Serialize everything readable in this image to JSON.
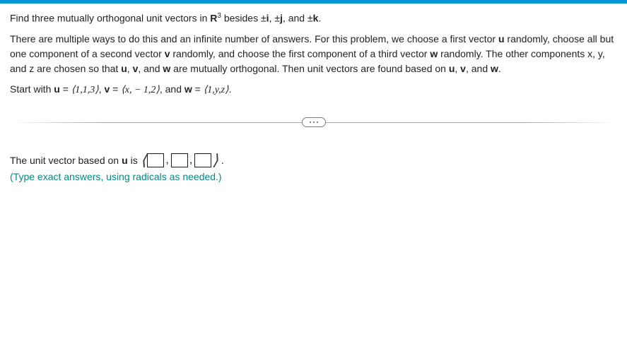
{
  "problem": {
    "line1_a": "Find three mutually orthogonal unit vectors in ",
    "line1_space": "R",
    "line1_exp": "3",
    "line1_b": " besides  ±",
    "line1_i": "i",
    "line1_c": ",  ±",
    "line1_j": "j",
    "line1_d": ", and  ±",
    "line1_k": "k",
    "line1_e": ".",
    "para2": "There are multiple ways to do this and an infinite number of answers.  For this problem, we choose a first vector ",
    "u1": "u",
    "para2b": " randomly, choose all but one component of a second vector ",
    "v1": "v",
    "para2c": " randomly, and choose the first component of a third vector ",
    "w1": "w",
    "para2d": " randomly. The other components x, y, and z are chosen so that ",
    "u2": "u",
    "comma1": ", ",
    "v2": "v",
    "para2e": ", and ",
    "w2": "w",
    "para2f": " are mutually orthogonal.  Then unit vectors are found based on ",
    "u3": "u",
    "comma2": ", ",
    "v3": "v",
    "para2g": ", and ",
    "w3": "w",
    "para2h": ".",
    "line3a": "Start with ",
    "u4": "u",
    "eq1": " = ",
    "tuple_u": "⟨1,1,3⟩",
    "comma3": ", ",
    "v4": "v",
    "eq2": " = ",
    "tuple_v": "⟨x, − 1,2⟩",
    "and": ", and ",
    "w4": "w",
    "eq3": " = ",
    "tuple_w": "⟨1,y,z⟩",
    "period": "."
  },
  "answer": {
    "prefix": "The unit vector based on ",
    "u": "u",
    "is": " is ",
    "open": "⟨",
    "close": "⟩",
    "end": "."
  },
  "hint": "(Type exact answers, using radicals as needed.)"
}
